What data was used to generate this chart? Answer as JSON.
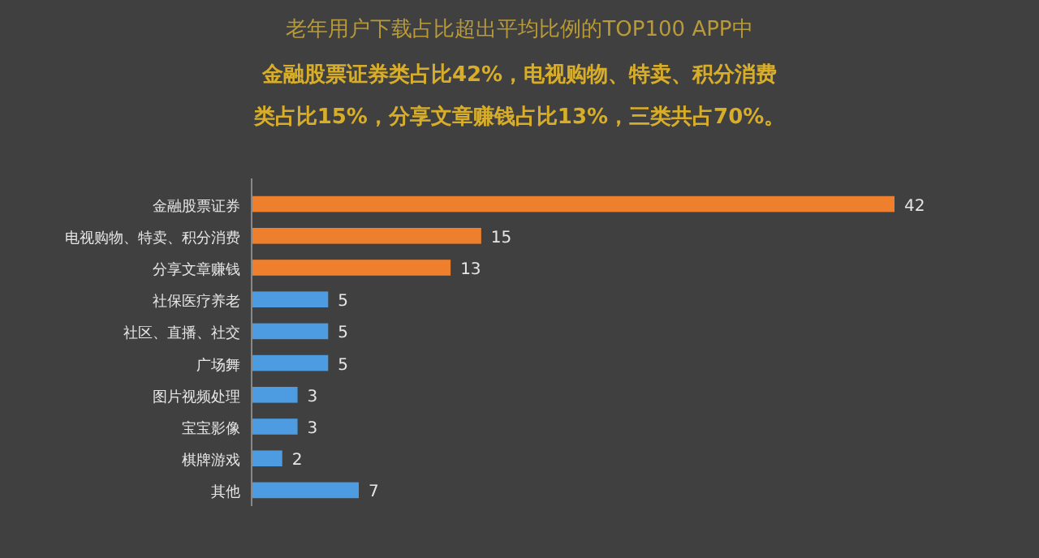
{
  "chart_data": {
    "type": "bar",
    "orientation": "horizontal",
    "title": "老年用户下载占比超出平均比例的TOP100 APP中",
    "subtitle": "金融股票证券类占比42%，电视购物、特卖、积分消费类占比15%，分享文章赚钱占比13%，三类共占70%。",
    "categories": [
      "金融股票证券",
      "电视购物、特卖、积分消费",
      "分享文章赚钱",
      "社保医疗养老",
      "社区、直播、社交",
      "广场舞",
      "图片视频处理",
      "宝宝影像",
      "棋牌游戏",
      "其他"
    ],
    "values": [
      42,
      15,
      13,
      5,
      5,
      5,
      3,
      3,
      2,
      7
    ],
    "colors": [
      "#ee7f2d",
      "#ee7f2d",
      "#ee7f2d",
      "#4d9be0",
      "#4d9be0",
      "#4d9be0",
      "#4d9be0",
      "#4d9be0",
      "#4d9be0",
      "#4d9be0"
    ],
    "data_labels": true
  }
}
